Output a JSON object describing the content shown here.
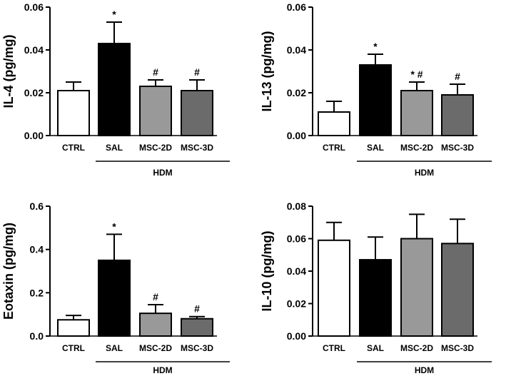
{
  "colors": {
    "CTRL": "#ffffff",
    "SAL": "#000000",
    "MSC-2D": "#999999",
    "MSC-3D": "#6b6b6b",
    "axis": "#000000"
  },
  "chart_data": [
    {
      "type": "bar",
      "ylabel": "IL-4 (pg/mg)",
      "ylim": [
        0,
        0.06
      ],
      "yticks": [
        "0.00",
        "0.02",
        "0.04",
        "0.06"
      ],
      "categories": [
        "CTRL",
        "SAL",
        "MSC-2D",
        "MSC-3D"
      ],
      "values": [
        0.021,
        0.043,
        0.023,
        0.021
      ],
      "errors": [
        0.004,
        0.01,
        0.003,
        0.005
      ],
      "annotations": [
        "",
        "*",
        "#",
        "#"
      ],
      "group_label": "HDM",
      "group": [
        "SAL",
        "MSC-2D",
        "MSC-3D"
      ]
    },
    {
      "type": "bar",
      "ylabel": "IL-13 (pg/mg)",
      "ylim": [
        0,
        0.06
      ],
      "yticks": [
        "0.00",
        "0.02",
        "0.04",
        "0.06"
      ],
      "categories": [
        "CTRL",
        "SAL",
        "MSC-2D",
        "MSC-3D"
      ],
      "values": [
        0.011,
        0.033,
        0.021,
        0.019
      ],
      "errors": [
        0.005,
        0.005,
        0.004,
        0.005
      ],
      "annotations": [
        "",
        "*",
        "* #",
        "#"
      ],
      "group_label": "HDM",
      "group": [
        "SAL",
        "MSC-2D",
        "MSC-3D"
      ]
    },
    {
      "type": "bar",
      "ylabel": "Eotaxin (pg/mg)",
      "ylim": [
        0,
        0.6
      ],
      "yticks": [
        "0.0",
        "0.2",
        "0.4",
        "0.6"
      ],
      "categories": [
        "CTRL",
        "SAL",
        "MSC-2D",
        "MSC-3D"
      ],
      "values": [
        0.075,
        0.35,
        0.105,
        0.08
      ],
      "errors": [
        0.02,
        0.12,
        0.04,
        0.01
      ],
      "annotations": [
        "",
        "*",
        "#",
        "#"
      ],
      "group_label": "HDM",
      "group": [
        "SAL",
        "MSC-2D",
        "MSC-3D"
      ]
    },
    {
      "type": "bar",
      "ylabel": "IL-10 (pg/mg)",
      "ylim": [
        0,
        0.08
      ],
      "yticks": [
        "0.00",
        "0.02",
        "0.04",
        "0.06",
        "0.08"
      ],
      "categories": [
        "CTRL",
        "SAL",
        "MSC-2D",
        "MSC-3D"
      ],
      "values": [
        0.059,
        0.047,
        0.06,
        0.057
      ],
      "errors": [
        0.011,
        0.014,
        0.015,
        0.015
      ],
      "annotations": [
        "",
        "",
        "",
        ""
      ],
      "group_label": "HDM",
      "group": [
        "SAL",
        "MSC-2D",
        "MSC-3D"
      ]
    }
  ]
}
